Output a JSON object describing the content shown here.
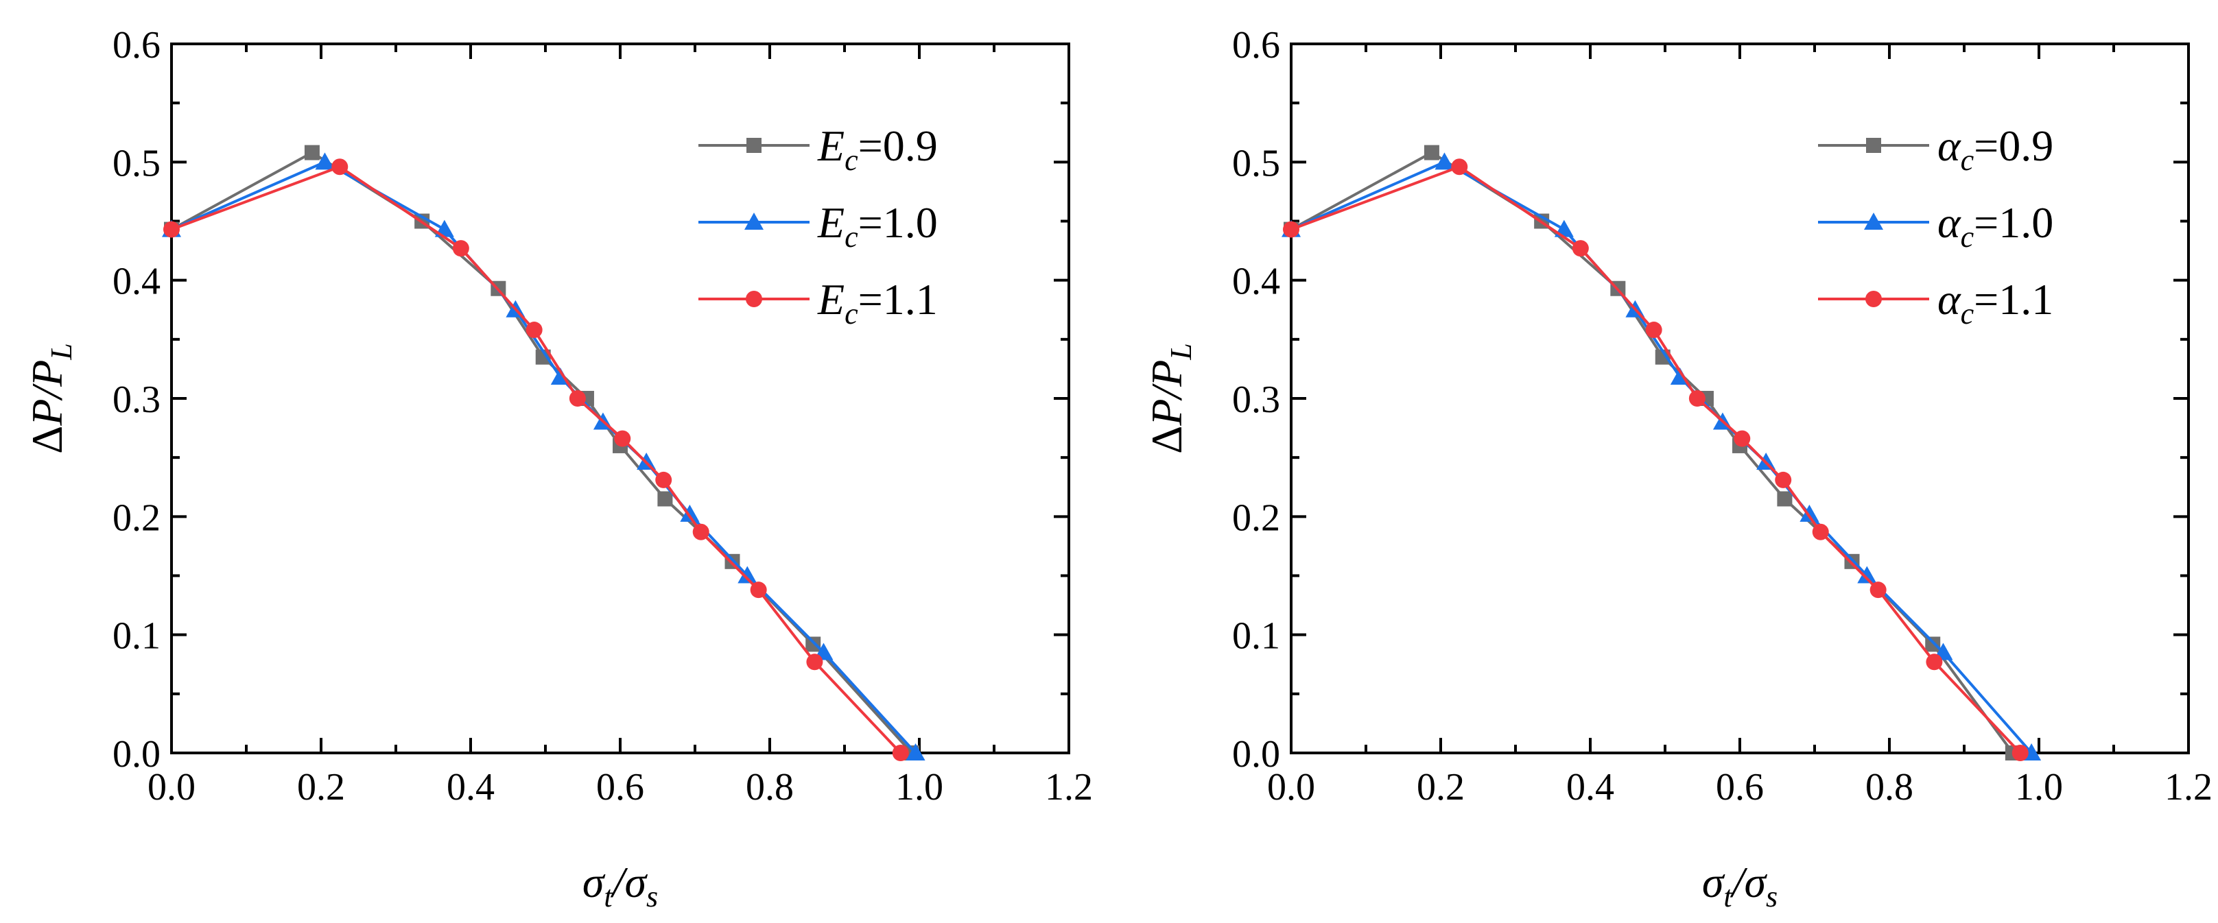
{
  "chart_data": [
    {
      "type": "line",
      "title": "",
      "xlabel": "σt/σs",
      "ylabel": "ΔP/PL",
      "xlim": [
        0.0,
        1.2
      ],
      "ylim": [
        0.0,
        0.6
      ],
      "xticks": [
        "0.0",
        "0.2",
        "0.4",
        "0.6",
        "0.8",
        "1.0",
        "1.2"
      ],
      "yticks": [
        "0.0",
        "0.1",
        "0.2",
        "0.3",
        "0.4",
        "0.5",
        "0.6"
      ],
      "legend_position": "top-right",
      "series": [
        {
          "name": "Ec=0.9",
          "symbol": "E",
          "subscript": "c",
          "value": "=0.9",
          "color": "#6e6e6e",
          "marker": "square",
          "x": [
            0.0,
            0.188,
            0.335,
            0.437,
            0.497,
            0.555,
            0.6,
            0.66,
            0.75,
            0.858,
            0.99
          ],
          "y": [
            0.443,
            0.508,
            0.45,
            0.393,
            0.335,
            0.3,
            0.26,
            0.215,
            0.162,
            0.092,
            0.0
          ]
        },
        {
          "name": "Ec=1.0",
          "symbol": "E",
          "subscript": "c",
          "value": "=1.0",
          "color": "#1a73e8",
          "marker": "triangle",
          "x": [
            0.0,
            0.205,
            0.365,
            0.46,
            0.52,
            0.577,
            0.635,
            0.693,
            0.77,
            0.872,
            0.995
          ],
          "y": [
            0.443,
            0.5,
            0.443,
            0.375,
            0.318,
            0.28,
            0.246,
            0.202,
            0.15,
            0.085,
            0.0
          ]
        },
        {
          "name": "Ec=1.1",
          "symbol": "E",
          "subscript": "c",
          "value": "=1.1",
          "color": "#f0383f",
          "marker": "circle",
          "x": [
            0.0,
            0.225,
            0.387,
            0.485,
            0.543,
            0.603,
            0.658,
            0.708,
            0.785,
            0.86,
            0.975
          ],
          "y": [
            0.443,
            0.496,
            0.427,
            0.358,
            0.3,
            0.266,
            0.231,
            0.187,
            0.138,
            0.077,
            0.0
          ]
        }
      ]
    },
    {
      "type": "line",
      "title": "",
      "xlabel": "σt/σs",
      "ylabel": "ΔP/PL",
      "xlim": [
        0.0,
        1.2
      ],
      "ylim": [
        0.0,
        0.6
      ],
      "xticks": [
        "0.0",
        "0.2",
        "0.4",
        "0.6",
        "0.8",
        "1.0",
        "1.2"
      ],
      "yticks": [
        "0.0",
        "0.1",
        "0.2",
        "0.3",
        "0.4",
        "0.5",
        "0.6"
      ],
      "legend_position": "top-right",
      "series": [
        {
          "name": "αc=0.9",
          "symbol": "α",
          "subscript": "c",
          "value": "=0.9",
          "color": "#6e6e6e",
          "marker": "square",
          "x": [
            0.0,
            0.188,
            0.335,
            0.437,
            0.497,
            0.555,
            0.6,
            0.66,
            0.75,
            0.858,
            0.965
          ],
          "y": [
            0.443,
            0.508,
            0.45,
            0.393,
            0.335,
            0.3,
            0.26,
            0.215,
            0.162,
            0.092,
            0.0
          ]
        },
        {
          "name": "αc=1.0",
          "symbol": "α",
          "subscript": "c",
          "value": "=1.0",
          "color": "#1a73e8",
          "marker": "triangle",
          "x": [
            0.0,
            0.205,
            0.365,
            0.46,
            0.52,
            0.577,
            0.635,
            0.693,
            0.77,
            0.872,
            0.99
          ],
          "y": [
            0.443,
            0.5,
            0.443,
            0.375,
            0.318,
            0.28,
            0.246,
            0.202,
            0.15,
            0.085,
            0.0
          ]
        },
        {
          "name": "αc=1.1",
          "symbol": "α",
          "subscript": "c",
          "value": "=1.1",
          "color": "#f0383f",
          "marker": "circle",
          "x": [
            0.0,
            0.225,
            0.387,
            0.485,
            0.543,
            0.603,
            0.658,
            0.708,
            0.785,
            0.86,
            0.975
          ],
          "y": [
            0.443,
            0.496,
            0.427,
            0.358,
            0.3,
            0.266,
            0.231,
            0.187,
            0.138,
            0.077,
            0.0
          ]
        }
      ]
    }
  ]
}
